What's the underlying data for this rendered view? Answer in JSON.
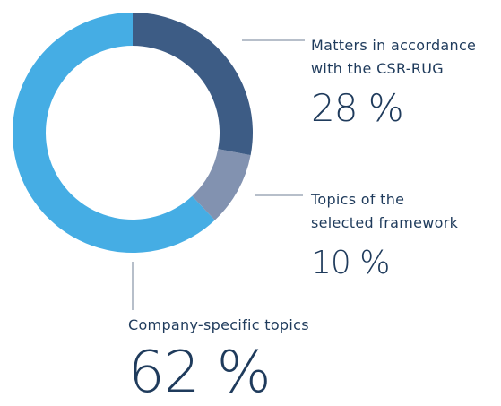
{
  "chart_data": {
    "type": "donut",
    "categories": [
      "Matters in accordance with the CSR-RUG",
      "Topics of the selected framework",
      "Company-specific topics"
    ],
    "values": [
      28,
      10,
      62
    ],
    "value_labels": [
      "28 %",
      "10 %",
      "62 %"
    ],
    "colors": [
      "#3d5c85",
      "#8292b0",
      "#45ade4"
    ]
  }
}
